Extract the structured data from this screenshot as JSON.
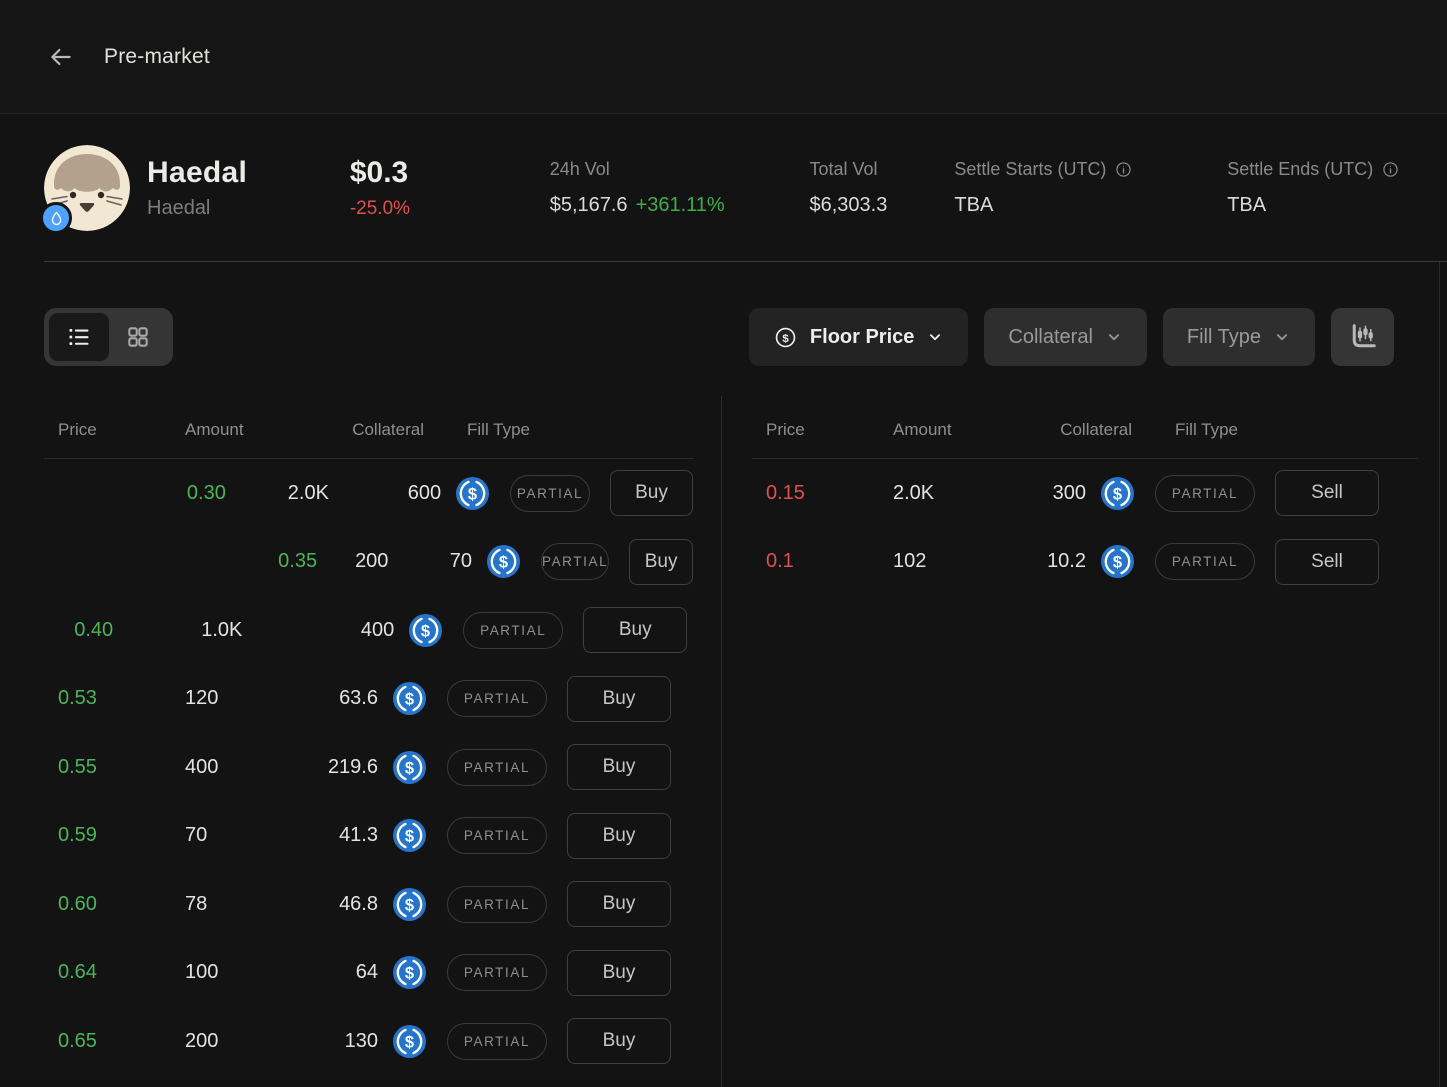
{
  "topbar": {
    "title": "Pre-market"
  },
  "token": {
    "name": "Haedal",
    "symbol": "Haedal",
    "price": "$0.3",
    "change": "-25.0%",
    "stats": [
      {
        "label": "24h Vol",
        "value": "$5,167.6",
        "change": "+361.11%"
      },
      {
        "label": "Total Vol",
        "value": "$6,303.3"
      },
      {
        "label": "Settle Starts (UTC)",
        "value": "TBA"
      },
      {
        "label": "Settle Ends (UTC)",
        "value": "TBA"
      }
    ]
  },
  "toolbar": {
    "sort": {
      "label": "Floor Price"
    },
    "filters": [
      {
        "label": "Collateral"
      },
      {
        "label": "Fill Type"
      }
    ]
  },
  "orderbook": {
    "columns": [
      "Price",
      "Amount",
      "Collateral",
      "Fill Type"
    ],
    "buy_side": {
      "action": "Buy",
      "price_color": "#4cb558",
      "rows": [
        {
          "price": "0.30",
          "amount": "2.0K",
          "collateral": "600",
          "fill_type": "PARTIAL",
          "depth_pct": 25
        },
        {
          "price": "0.35",
          "amount": "200",
          "collateral": "70",
          "fill_type": "PARTIAL",
          "depth_pct": 56
        },
        {
          "price": "0.40",
          "amount": "1.0K",
          "collateral": "400",
          "fill_type": "PARTIAL",
          "depth_pct": 2.5
        },
        {
          "price": "0.53",
          "amount": "120",
          "collateral": "63.6",
          "fill_type": "PARTIAL",
          "depth_pct": 0
        },
        {
          "price": "0.55",
          "amount": "400",
          "collateral": "219.6",
          "fill_type": "PARTIAL",
          "depth_pct": 0
        },
        {
          "price": "0.59",
          "amount": "70",
          "collateral": "41.3",
          "fill_type": "PARTIAL",
          "depth_pct": 0
        },
        {
          "price": "0.60",
          "amount": "78",
          "collateral": "46.8",
          "fill_type": "PARTIAL",
          "depth_pct": 0
        },
        {
          "price": "0.64",
          "amount": "100",
          "collateral": "64",
          "fill_type": "PARTIAL",
          "depth_pct": 0
        },
        {
          "price": "0.65",
          "amount": "200",
          "collateral": "130",
          "fill_type": "PARTIAL",
          "depth_pct": 0
        }
      ]
    },
    "sell_side": {
      "action": "Sell",
      "price_color": "#e0514d",
      "rows": [
        {
          "price": "0.15",
          "amount": "2.0K",
          "collateral": "300",
          "fill_type": "PARTIAL",
          "depth_pct": 0
        },
        {
          "price": "0.1",
          "amount": "102",
          "collateral": "10.2",
          "fill_type": "PARTIAL",
          "depth_pct": 0
        }
      ]
    }
  },
  "icons": {
    "back": "back-arrow-icon",
    "sui_badge": "sui-droplet-icon",
    "list_view": "list-view-icon",
    "grid_view": "grid-view-icon",
    "dollar_circle": "dollar-circle-icon",
    "chevron": "chevron-down-icon",
    "info": "info-icon",
    "candlestick": "candlestick-chart-icon",
    "usdc": "usdc-coin-icon"
  },
  "colors": {
    "background": "#131313",
    "positive_green": "#3fae49",
    "buy_green": "#4cb558",
    "sell_red": "#e0514d",
    "usdc_blue": "#2775ca",
    "sui_blue": "#4da2ff"
  }
}
